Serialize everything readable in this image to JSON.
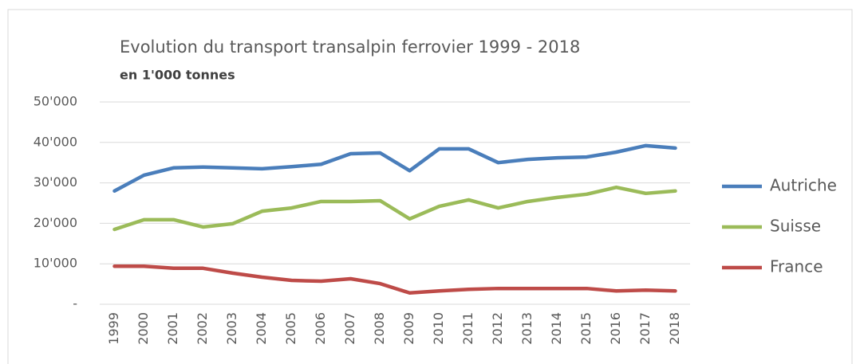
{
  "chart_data": {
    "type": "line",
    "title": "Evolution du transport transalpin ferrovier 1999 - 2018",
    "subtitle": "en 1'000 tonnes",
    "categories": [
      "1999",
      "2000",
      "2001",
      "2002",
      "2003",
      "2004",
      "2005",
      "2006",
      "2007",
      "2008",
      "2009",
      "2010",
      "2011",
      "2012",
      "2013",
      "2014",
      "2015",
      "2016",
      "2017",
      "2018"
    ],
    "series": [
      {
        "name": "Autriche",
        "color": "#4a7ebb",
        "values": [
          28000,
          31900,
          33700,
          33900,
          33700,
          33500,
          34000,
          34600,
          37200,
          37400,
          33000,
          38400,
          38400,
          35000,
          35800,
          36200,
          36400,
          37600,
          39200,
          38600
        ]
      },
      {
        "name": "Suisse",
        "color": "#9bbb59",
        "values": [
          18500,
          20900,
          20900,
          19100,
          19900,
          23000,
          23800,
          25400,
          25400,
          25600,
          21100,
          24200,
          25800,
          23800,
          25400,
          26400,
          27200,
          28900,
          27400,
          28000
        ]
      },
      {
        "name": "France",
        "color": "#be4b48",
        "values": [
          9400,
          9400,
          8900,
          8900,
          7700,
          6700,
          5900,
          5700,
          6300,
          5100,
          2800,
          3300,
          3700,
          3900,
          3900,
          3900,
          3900,
          3300,
          3500,
          3300
        ]
      }
    ],
    "ylim": [
      0,
      50000
    ],
    "yticks": [
      {
        "value": 0,
        "label": "-"
      },
      {
        "value": 10000,
        "label": "10'000"
      },
      {
        "value": 20000,
        "label": "20'000"
      },
      {
        "value": 30000,
        "label": "30'000"
      },
      {
        "value": 40000,
        "label": "40'000"
      },
      {
        "value": 50000,
        "label": "50'000"
      }
    ],
    "grid": true,
    "legend": "right"
  }
}
